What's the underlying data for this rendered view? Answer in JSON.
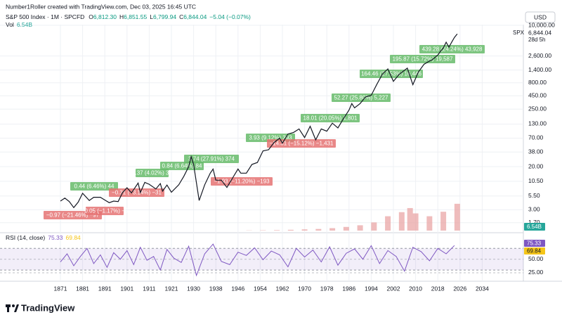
{
  "chart_data": {
    "type": "line",
    "header": "Number1Roller created with TradingView.com, Dec 03, 2025 16:45 UTC",
    "title": "S&P 500 Index · 1M · SPCFD",
    "ohlc": [
      {
        "name": "O",
        "label": "6,812.30"
      },
      {
        "name": "H",
        "label": "6,851.55"
      },
      {
        "name": "L",
        "label": "6,799.94"
      },
      {
        "name": "C",
        "label": "6,844.04"
      }
    ],
    "change": "−5.04 (−0.07%)",
    "vol_title": "Vol",
    "vol_last": "6.54B",
    "currency": "USD",
    "symbol": "SPX",
    "last_price": "6,844.04",
    "countdown": "28d 5h",
    "brand": "TradingView",
    "log_scale": true,
    "grid": true,
    "price": {
      "color": "#131722",
      "x": [
        1871,
        1873,
        1875,
        1877,
        1879,
        1881,
        1884,
        1886,
        1889,
        1891,
        1893,
        1895,
        1897,
        1899,
        1901,
        1903,
        1906,
        1907,
        1909,
        1911,
        1914,
        1916,
        1917,
        1919,
        1921,
        1924,
        1926,
        1928,
        1929,
        1930,
        1932,
        1934,
        1936,
        1937,
        1938,
        1940,
        1942,
        1944,
        1946,
        1947,
        1949,
        1951,
        1953,
        1955,
        1957,
        1959,
        1961,
        1962,
        1964,
        1966,
        1968,
        1970,
        1972,
        1974,
        1976,
        1978,
        1980,
        1982,
        1984,
        1986,
        1987,
        1988,
        1990,
        1992,
        1994,
        1996,
        1998,
        2000,
        2002,
        2004,
        2007,
        2009,
        2011,
        2013,
        2015,
        2016,
        2018,
        2019,
        2020,
        2021,
        2022,
        2023,
        2024,
        2025
      ],
      "values": [
        4.4,
        5.0,
        4.3,
        3.3,
        4.2,
        6.2,
        4.5,
        5.2,
        5.2,
        4.6,
        4.1,
        4.4,
        4.3,
        6.4,
        7.9,
        6.3,
        9.7,
        6.4,
        10.0,
        9.2,
        7.5,
        9.5,
        6.8,
        8.9,
        6.5,
        9.0,
        13,
        20,
        31,
        22,
        4.5,
        9,
        15,
        18,
        11,
        11,
        8,
        12,
        18,
        15,
        15,
        22,
        24,
        40,
        42,
        58,
        70,
        56,
        84,
        90,
        105,
        72,
        118,
        65,
        105,
        95,
        135,
        110,
        165,
        240,
        320,
        265,
        320,
        430,
        460,
        740,
        1160,
        1470,
        850,
        1150,
        1520,
        735,
        1280,
        1800,
        2080,
        2200,
        2700,
        3200,
        3700,
        4760,
        3840,
        4770,
        5880,
        6844.04
      ]
    },
    "ylim": [
      1.2,
      10000
    ],
    "yticks": [
      {
        "value": 10000,
        "label": "10,000.00"
      },
      {
        "value": 2600,
        "label": "2,600.00"
      },
      {
        "value": 1400,
        "label": "1,400.00"
      },
      {
        "value": 800,
        "label": "800.00"
      },
      {
        "value": 450,
        "label": "450.00"
      },
      {
        "value": 250,
        "label": "250.00"
      },
      {
        "value": 130,
        "label": "130.00"
      },
      {
        "value": 70,
        "label": "70.00"
      },
      {
        "value": 38,
        "label": "38.00"
      },
      {
        "value": 20,
        "label": "20.00"
      },
      {
        "value": 10.5,
        "label": "10.50"
      },
      {
        "value": 5.5,
        "label": "5.50"
      },
      {
        "value": 3,
        "label": "3.00"
      },
      {
        "value": 1.7,
        "label": "1.70"
      }
    ],
    "xticks": [
      1871,
      1881,
      1891,
      1901,
      1911,
      1921,
      1930,
      1938,
      1946,
      1954,
      1962,
      1970,
      1978,
      1986,
      1994,
      2002,
      2010,
      2018,
      2026,
      2034
    ],
    "volume": {
      "color": "#e8a0a0",
      "x": [
        1950,
        1955,
        1960,
        1965,
        1970,
        1975,
        1980,
        1985,
        1990,
        1995,
        2000,
        2005,
        2008,
        2010,
        2015,
        2020,
        2025
      ],
      "values": [
        0.05,
        0.08,
        0.12,
        0.2,
        0.3,
        0.4,
        0.6,
        0.9,
        1.3,
        2.0,
        3.5,
        4.5,
        5.5,
        4.2,
        3.5,
        4.6,
        6.54
      ]
    },
    "vlim": [
      0,
      12
    ],
    "annotations": [
      {
        "text": "0.44 (6.46%) 44",
        "color": "#66bb6a"
      },
      {
        "text": "−0.97 (−21.46%) −97",
        "color": "#e57373"
      },
      {
        "text": "−0.05 (−1.17%) −5",
        "color": "#e57373"
      },
      {
        "text": "−0.31 (−3.14%) −31",
        "color": "#e57373"
      },
      {
        "text": "0.37 (4.02%) 37",
        "color": "#66bb6a"
      },
      {
        "text": "0.84 (6.64%) 84",
        "color": "#66bb6a"
      },
      {
        "text": "3.74 (27.91%) 374",
        "color": "#66bb6a"
      },
      {
        "text": "−1.93 (−11.20%) −193",
        "color": "#e57373"
      },
      {
        "text": "3.93 (9.12%) 393",
        "color": "#66bb6a"
      },
      {
        "text": "−14.31 (−15.12%) −1,431",
        "color": "#e57373"
      },
      {
        "text": "18.01 (20.05%) 1,801",
        "color": "#66bb6a"
      },
      {
        "text": "52.27 (25.80%) 5,227",
        "color": "#66bb6a"
      },
      {
        "text": "164.46 (27.53%) 16,446",
        "color": "#66bb6a"
      },
      {
        "text": "195.87 (15.72%) 19,587",
        "color": "#66bb6a"
      },
      {
        "text": "439.28 (24.24%) 43,928",
        "color": "#66bb6a"
      }
    ],
    "rsi": {
      "title": "RSI (14, close)",
      "last": "75.33",
      "ma_last": "69.84",
      "color": "#7e57c2",
      "ma_color": "#f5c518",
      "band": [
        30,
        70
      ],
      "x": [
        1871,
        1874,
        1877,
        1880,
        1883,
        1886,
        1889,
        1892,
        1895,
        1898,
        1901,
        1904,
        1907,
        1910,
        1913,
        1916,
        1919,
        1922,
        1925,
        1928,
        1931,
        1934,
        1937,
        1940,
        1943,
        1946,
        1949,
        1952,
        1955,
        1958,
        1961,
        1964,
        1967,
        1970,
        1973,
        1976,
        1979,
        1982,
        1985,
        1988,
        1991,
        1994,
        1997,
        2000,
        2003,
        2006,
        2009,
        2012,
        2015,
        2018,
        2021,
        2024
      ],
      "values": [
        45,
        60,
        38,
        55,
        70,
        42,
        58,
        35,
        62,
        50,
        66,
        40,
        72,
        48,
        55,
        30,
        68,
        52,
        44,
        74,
        20,
        60,
        78,
        46,
        40,
        63,
        57,
        71,
        49,
        65,
        58,
        36,
        70,
        54,
        67,
        45,
        73,
        39,
        61,
        69,
        50,
        75,
        42,
        66,
        55,
        28,
        72,
        64,
        47,
        70,
        60,
        75.33
      ],
      "ylim": [
        12,
        95
      ],
      "yticks": [
        {
          "value": 50,
          "label": "50.00"
        },
        {
          "value": 25,
          "label": "25.00"
        }
      ]
    }
  }
}
